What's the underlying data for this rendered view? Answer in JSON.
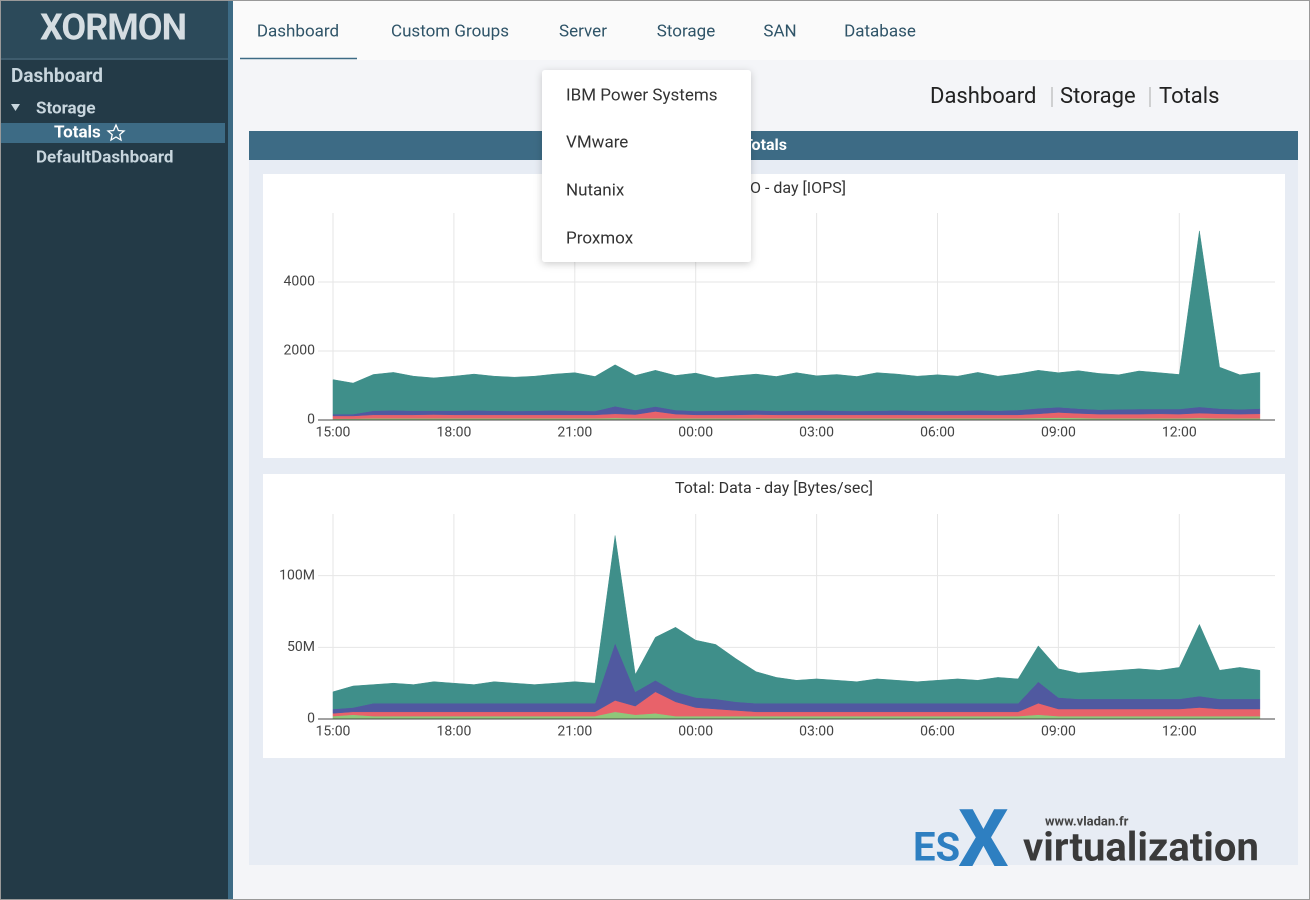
{
  "logo": "XORMON",
  "sidebar": {
    "title": "Dashboard",
    "tree": [
      "Storage",
      "Totals",
      "DefaultDashboard"
    ]
  },
  "tabs": [
    "Dashboard",
    "Custom Groups",
    "Server",
    "Storage",
    "SAN",
    "Database"
  ],
  "dropdown": [
    "IBM Power Systems",
    "VMware",
    "Nutanix",
    "Proxmox"
  ],
  "breadcrumb": [
    "Dashboard",
    "Storage",
    "Totals"
  ],
  "panel_title": "Totals",
  "watermark": {
    "url": "www.vladan.fr",
    "es": "ES",
    "x": "X",
    "rest": "virtualization"
  },
  "chart_data": [
    {
      "type": "area",
      "stacked": true,
      "title": "Total: IO - day [IOPS]",
      "categories": [
        "15:00",
        "15:30",
        "16:00",
        "16:30",
        "17:00",
        "17:30",
        "18:00",
        "18:30",
        "19:00",
        "19:30",
        "20:00",
        "20:30",
        "21:00",
        "21:30",
        "22:00",
        "22:30",
        "23:00",
        "23:30",
        "00:00",
        "00:30",
        "01:00",
        "01:30",
        "02:00",
        "02:30",
        "03:00",
        "03:30",
        "04:00",
        "04:30",
        "05:00",
        "05:30",
        "06:00",
        "06:30",
        "07:00",
        "07:30",
        "08:00",
        "08:30",
        "09:00",
        "09:30",
        "10:00",
        "10:30",
        "11:00",
        "11:30",
        "12:00",
        "12:30",
        "13:00",
        "13:30",
        "14:00"
      ],
      "xticks": [
        "15:00",
        "18:00",
        "21:00",
        "00:00",
        "03:00",
        "06:00",
        "09:00",
        "12:00"
      ],
      "ylim": [
        0,
        6000
      ],
      "yticks": [
        0,
        2000,
        4000
      ],
      "grid": true,
      "series": [
        {
          "color": "#8fc77a",
          "values": [
            40,
            40,
            50,
            50,
            50,
            50,
            50,
            50,
            50,
            50,
            50,
            50,
            50,
            50,
            60,
            50,
            50,
            50,
            50,
            50,
            50,
            50,
            50,
            50,
            50,
            50,
            50,
            50,
            50,
            50,
            50,
            50,
            50,
            50,
            50,
            60,
            70,
            60,
            50,
            50,
            50,
            50,
            50,
            60,
            50,
            50,
            50
          ]
        },
        {
          "color": "#e8626a",
          "values": [
            80,
            80,
            100,
            100,
            100,
            110,
            100,
            100,
            100,
            100,
            100,
            100,
            100,
            100,
            120,
            110,
            200,
            120,
            100,
            100,
            100,
            110,
            100,
            100,
            100,
            100,
            100,
            100,
            100,
            100,
            100,
            100,
            100,
            100,
            100,
            120,
            150,
            130,
            120,
            120,
            120,
            130,
            120,
            140,
            130,
            120,
            130
          ]
        },
        {
          "color": "#5059a0",
          "values": [
            50,
            50,
            120,
            130,
            120,
            110,
            120,
            130,
            120,
            110,
            120,
            130,
            120,
            110,
            220,
            130,
            140,
            120,
            110,
            120,
            130,
            120,
            110,
            120,
            130,
            120,
            110,
            120,
            130,
            120,
            110,
            120,
            130,
            120,
            140,
            160,
            150,
            140,
            130,
            140,
            150,
            140,
            150,
            180,
            150,
            140,
            150
          ]
        },
        {
          "color": "#3f8f8a",
          "values": [
            1000,
            900,
            1050,
            1100,
            1000,
            950,
            1000,
            1050,
            1000,
            980,
            1000,
            1050,
            1100,
            1000,
            1200,
            1000,
            1050,
            1000,
            1100,
            950,
            1000,
            1050,
            1000,
            1100,
            1000,
            1050,
            1000,
            1100,
            1050,
            1000,
            1050,
            1000,
            1100,
            1000,
            1050,
            1100,
            1000,
            1100,
            1050,
            1000,
            1100,
            1050,
            1000,
            5100,
            1200,
            1000,
            1050
          ]
        }
      ]
    },
    {
      "type": "area",
      "stacked": true,
      "title": "Total: Data - day [Bytes/sec]",
      "categories": [
        "15:00",
        "15:30",
        "16:00",
        "16:30",
        "17:00",
        "17:30",
        "18:00",
        "18:30",
        "19:00",
        "19:30",
        "20:00",
        "20:30",
        "21:00",
        "21:30",
        "22:00",
        "22:30",
        "23:00",
        "23:30",
        "00:00",
        "00:30",
        "01:00",
        "01:30",
        "02:00",
        "02:30",
        "03:00",
        "03:30",
        "04:00",
        "04:30",
        "05:00",
        "05:30",
        "06:00",
        "06:30",
        "07:00",
        "07:30",
        "08:00",
        "08:30",
        "09:00",
        "09:30",
        "10:00",
        "10:30",
        "11:00",
        "11:30",
        "12:00",
        "12:30",
        "13:00",
        "13:30",
        "14:00"
      ],
      "xticks": [
        "15:00",
        "18:00",
        "21:00",
        "00:00",
        "03:00",
        "06:00",
        "09:00",
        "12:00"
      ],
      "ylim": [
        0,
        143000000
      ],
      "yticks": [
        0,
        {
          "value": 50000000,
          "label": "50M"
        },
        {
          "value": 100000000,
          "label": "100M"
        }
      ],
      "grid": true,
      "series": [
        {
          "color": "#8fc77a",
          "values": [
            2000000,
            3000000,
            2000000,
            2000000,
            2000000,
            2000000,
            2000000,
            2000000,
            2000000,
            2000000,
            2000000,
            2000000,
            2000000,
            2000000,
            5000000,
            3000000,
            4000000,
            2000000,
            2000000,
            2000000,
            2000000,
            2000000,
            2000000,
            2000000,
            2000000,
            2000000,
            2000000,
            2000000,
            2000000,
            2000000,
            2000000,
            2000000,
            2000000,
            2000000,
            2000000,
            3000000,
            2000000,
            2000000,
            2000000,
            2000000,
            2000000,
            2000000,
            2000000,
            2000000,
            2000000,
            2000000,
            2000000
          ]
        },
        {
          "color": "#e8626a",
          "values": [
            2000000,
            2000000,
            3000000,
            3000000,
            3000000,
            3000000,
            3000000,
            3000000,
            3000000,
            3000000,
            3000000,
            3000000,
            3000000,
            3000000,
            8000000,
            6000000,
            15000000,
            10000000,
            6000000,
            5000000,
            4000000,
            3000000,
            3000000,
            3000000,
            3000000,
            3000000,
            3000000,
            3000000,
            3000000,
            3000000,
            3000000,
            3000000,
            3000000,
            3000000,
            3000000,
            8000000,
            5000000,
            5000000,
            5000000,
            5000000,
            5000000,
            5000000,
            5000000,
            6000000,
            5000000,
            5000000,
            5000000
          ]
        },
        {
          "color": "#5059a0",
          "values": [
            3000000,
            3000000,
            6000000,
            6000000,
            6000000,
            6000000,
            6000000,
            6000000,
            6000000,
            6000000,
            6000000,
            6000000,
            6000000,
            6000000,
            40000000,
            10000000,
            8000000,
            7000000,
            7000000,
            7000000,
            6000000,
            6000000,
            6000000,
            6000000,
            6000000,
            6000000,
            6000000,
            6000000,
            6000000,
            6000000,
            6000000,
            6000000,
            6000000,
            6000000,
            6000000,
            15000000,
            8000000,
            7000000,
            7000000,
            7000000,
            7000000,
            7000000,
            7000000,
            8000000,
            7000000,
            7000000,
            7000000
          ]
        },
        {
          "color": "#3f8f8a",
          "values": [
            12000000,
            15000000,
            13000000,
            14000000,
            13000000,
            15000000,
            14000000,
            13000000,
            15000000,
            14000000,
            13000000,
            14000000,
            15000000,
            14000000,
            75000000,
            12000000,
            30000000,
            45000000,
            40000000,
            38000000,
            30000000,
            22000000,
            18000000,
            16000000,
            17000000,
            16000000,
            15000000,
            17000000,
            16000000,
            15000000,
            16000000,
            17000000,
            16000000,
            18000000,
            17000000,
            25000000,
            20000000,
            18000000,
            19000000,
            20000000,
            21000000,
            20000000,
            22000000,
            50000000,
            20000000,
            22000000,
            20000000
          ]
        }
      ]
    }
  ]
}
